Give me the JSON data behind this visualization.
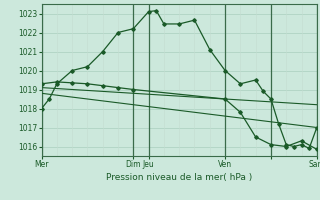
{
  "bg_color": "#cce8dc",
  "grid_color_h": "#aacfbe",
  "grid_color_v_minor": "#c4ddd0",
  "grid_color_v_major": "#3a6b4a",
  "line_color": "#1a5a28",
  "xlabel": "Pression niveau de la mer( hPa )",
  "xlabel_color": "#1a5a28",
  "tick_color": "#1a5a28",
  "ylim": [
    1015.5,
    1023.5
  ],
  "yticks": [
    1016,
    1017,
    1018,
    1019,
    1020,
    1021,
    1022,
    1023
  ],
  "total_x": 18,
  "xtick_positions": [
    0,
    6,
    7,
    12,
    15,
    18
  ],
  "xtick_labels": [
    "Mer",
    "Dim",
    "Jeu",
    "Ven",
    "",
    "Sam"
  ],
  "major_vlines": [
    0,
    6,
    7,
    12,
    15,
    18
  ],
  "line1_x": [
    0,
    0.5,
    1,
    2,
    3,
    4,
    5,
    6,
    7,
    7.5,
    8,
    9,
    10,
    11,
    12,
    13,
    14,
    14.5,
    15,
    15.5,
    16,
    16.5,
    17,
    17.5,
    18
  ],
  "line1_y": [
    1018.0,
    1018.5,
    1019.3,
    1020.0,
    1020.2,
    1021.0,
    1022.0,
    1022.2,
    1023.1,
    1023.15,
    1022.45,
    1022.45,
    1022.65,
    1021.1,
    1020.0,
    1019.3,
    1019.5,
    1018.9,
    1018.5,
    1017.2,
    1016.1,
    1016.0,
    1016.1,
    1015.9,
    1017.0
  ],
  "line2_x": [
    0,
    1,
    2,
    3,
    4,
    5,
    6,
    12,
    13,
    14,
    15,
    16,
    17,
    18
  ],
  "line2_y": [
    1019.3,
    1019.4,
    1019.35,
    1019.3,
    1019.2,
    1019.1,
    1019.0,
    1018.5,
    1017.8,
    1016.5,
    1016.1,
    1016.0,
    1016.3,
    1015.85
  ],
  "line3_x": [
    0,
    18
  ],
  "line3_y": [
    1019.1,
    1018.2
  ],
  "line4_x": [
    0,
    18
  ],
  "line4_y": [
    1018.8,
    1017.0
  ]
}
